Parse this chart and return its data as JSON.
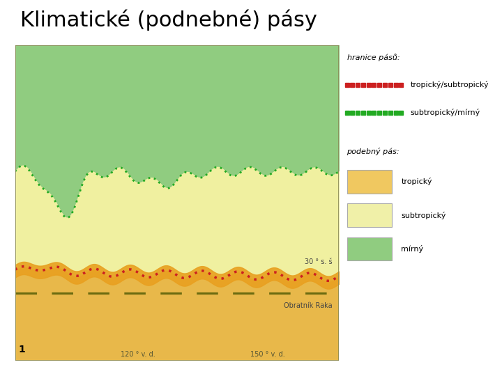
{
  "title": "Klimatické (podnebné) pásy",
  "title_fontsize": 22,
  "bg_color": "#ffffff",
  "map_color_mirny": "#90cc80",
  "map_color_subtrop": "#f0f0a0",
  "map_color_trop": "#e8b84a",
  "map_color_ocean": "#c8dca0",
  "dotted_red_color": "#cc2020",
  "dotted_green_color": "#22aa22",
  "dashed_olive_color": "#6b6b10",
  "label_30": "30 ° s. š",
  "label_obratnik": "Obratník Raka",
  "label_120": "120 ° v. d.",
  "label_150": "150 ° v. d.",
  "label_1": "1",
  "legend_title_hranice": "hranice pásů:",
  "legend_label_trop_subtrop": "tropický/subtropický",
  "legend_label_subtrop_mirny": "subtropický/mírný",
  "legend_title_podnebn": "podebný pás:",
  "legend_label_tropicky": "tropický",
  "legend_label_subtropicky": "subtropický",
  "legend_label_mirny": "mírný",
  "trop_swatch": "#f0c860",
  "subtrop_swatch": "#f0f0a8",
  "mirny_swatch": "#90cc80",
  "swatch_edge": "#aaaaaa"
}
